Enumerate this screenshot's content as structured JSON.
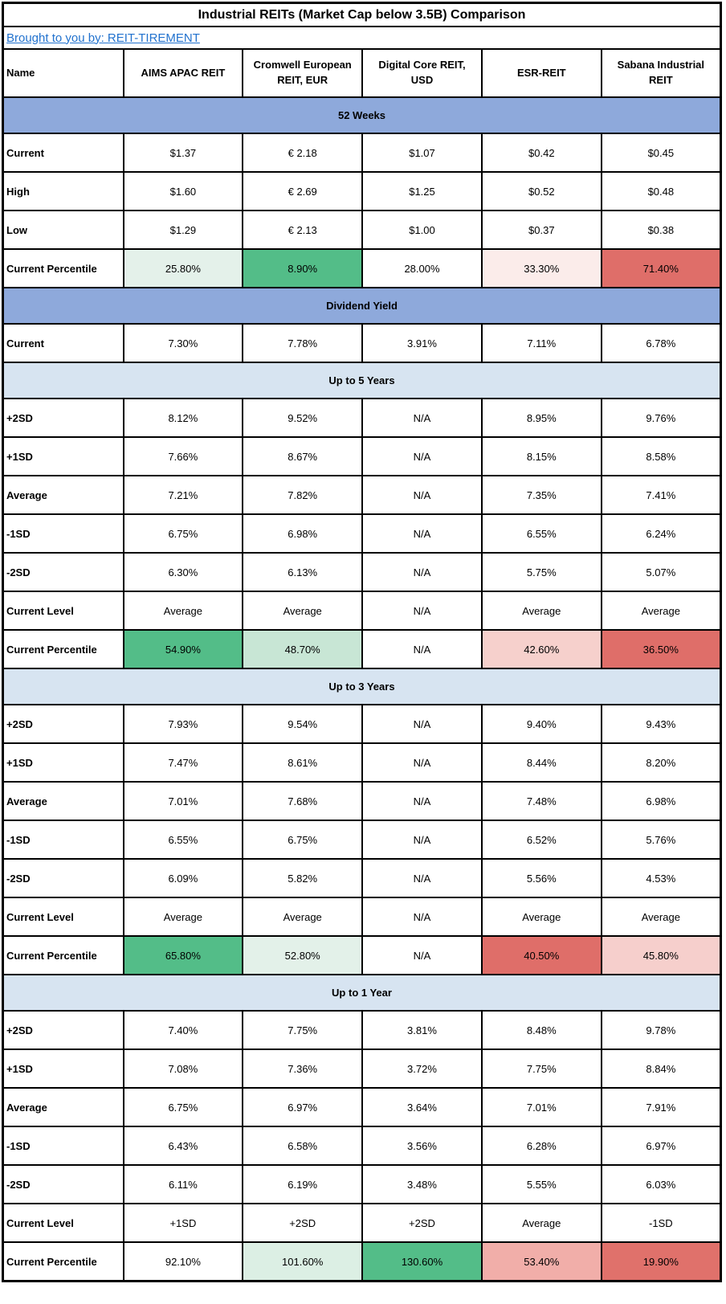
{
  "title": "Industrial REITs (Market Cap below 3.5B) Comparison",
  "byline": {
    "text": "Brought to you by: REIT-TIREMENT",
    "link_color": "#2272CE"
  },
  "colors": {
    "section_blue": "#8EA9DB",
    "section_light_blue": "#D7E4F1",
    "grid_border": "#000000",
    "green_strong": "#53BD88",
    "green_light": "#C8E6D5",
    "green_very_light": "#E4F1EA",
    "red_strong": "#DF6E69",
    "pink_medium": "#F1AEA9",
    "pink_light": "#F6CFCC",
    "pink_very_light": "#FBECEA",
    "hyperlink_blue": "#2272CE"
  },
  "chart_data": {
    "type": "table",
    "columns": [
      "Name",
      "AIMS APAC REIT",
      "Cromwell European REIT, EUR",
      "Digital Core REIT, USD",
      "ESR-REIT",
      "Sabana Industrial REIT"
    ],
    "sections": [
      {
        "header": "52 Weeks",
        "header_bg": "#8EA9DB",
        "rows": [
          {
            "label": "Current",
            "values": [
              "$1.37",
              "€ 2.18",
              "$1.07",
              "$0.42",
              "$0.45"
            ]
          },
          {
            "label": "High",
            "values": [
              "$1.60",
              "€ 2.69",
              "$1.25",
              "$0.52",
              "$0.48"
            ]
          },
          {
            "label": "Low",
            "values": [
              "$1.29",
              "€ 2.13",
              "$1.00",
              "$0.37",
              "$0.38"
            ]
          },
          {
            "label": "Current Percentile",
            "values": [
              "25.80%",
              "8.90%",
              "28.00%",
              "33.30%",
              "71.40%"
            ],
            "bg": [
              "#E4F1EA",
              "#53BD88",
              null,
              "#FBECEA",
              "#DF6E69"
            ]
          }
        ]
      },
      {
        "header": "Dividend Yield",
        "header_bg": "#8EA9DB",
        "rows": [
          {
            "label": "Current",
            "values": [
              "7.30%",
              "7.78%",
              "3.91%",
              "7.11%",
              "6.78%"
            ]
          }
        ]
      },
      {
        "header": "Up to 5 Years",
        "header_bg": "#D7E4F1",
        "rows": [
          {
            "label": "+2SD",
            "values": [
              "8.12%",
              "9.52%",
              "N/A",
              "8.95%",
              "9.76%"
            ]
          },
          {
            "label": "+1SD",
            "values": [
              "7.66%",
              "8.67%",
              "N/A",
              "8.15%",
              "8.58%"
            ]
          },
          {
            "label": "Average",
            "values": [
              "7.21%",
              "7.82%",
              "N/A",
              "7.35%",
              "7.41%"
            ]
          },
          {
            "label": "-1SD",
            "values": [
              "6.75%",
              "6.98%",
              "N/A",
              "6.55%",
              "6.24%"
            ]
          },
          {
            "label": "-2SD",
            "values": [
              "6.30%",
              "6.13%",
              "N/A",
              "5.75%",
              "5.07%"
            ]
          },
          {
            "label": "Current Level",
            "values": [
              "Average",
              "Average",
              "N/A",
              "Average",
              "Average"
            ]
          },
          {
            "label": "Current Percentile",
            "values": [
              "54.90%",
              "48.70%",
              "N/A",
              "42.60%",
              "36.50%"
            ],
            "bg": [
              "#53BD88",
              "#C8E6D5",
              null,
              "#F6D0CC",
              "#DF6E69"
            ]
          }
        ]
      },
      {
        "header": "Up to 3 Years",
        "header_bg": "#D7E4F1",
        "rows": [
          {
            "label": "+2SD",
            "values": [
              "7.93%",
              "9.54%",
              "N/A",
              "9.40%",
              "9.43%"
            ]
          },
          {
            "label": "+1SD",
            "values": [
              "7.47%",
              "8.61%",
              "N/A",
              "8.44%",
              "8.20%"
            ]
          },
          {
            "label": "Average",
            "values": [
              "7.01%",
              "7.68%",
              "N/A",
              "7.48%",
              "6.98%"
            ]
          },
          {
            "label": "-1SD",
            "values": [
              "6.55%",
              "6.75%",
              "N/A",
              "6.52%",
              "5.76%"
            ]
          },
          {
            "label": "-2SD",
            "values": [
              "6.09%",
              "5.82%",
              "N/A",
              "5.56%",
              "4.53%"
            ]
          },
          {
            "label": "Current Level",
            "values": [
              "Average",
              "Average",
              "N/A",
              "Average",
              "Average"
            ]
          },
          {
            "label": "Current Percentile",
            "values": [
              "65.80%",
              "52.80%",
              "N/A",
              "40.50%",
              "45.80%"
            ],
            "bg": [
              "#53BD88",
              "#E3F1E9",
              null,
              "#DF6E69",
              "#F6CFCC"
            ]
          }
        ]
      },
      {
        "header": "Up to 1 Year",
        "header_bg": "#D7E4F1",
        "rows": [
          {
            "label": "+2SD",
            "values": [
              "7.40%",
              "7.75%",
              "3.81%",
              "8.48%",
              "9.78%"
            ]
          },
          {
            "label": "+1SD",
            "values": [
              "7.08%",
              "7.36%",
              "3.72%",
              "7.75%",
              "8.84%"
            ]
          },
          {
            "label": "Average",
            "values": [
              "6.75%",
              "6.97%",
              "3.64%",
              "7.01%",
              "7.91%"
            ]
          },
          {
            "label": "-1SD",
            "values": [
              "6.43%",
              "6.58%",
              "3.56%",
              "6.28%",
              "6.97%"
            ]
          },
          {
            "label": "-2SD",
            "values": [
              "6.11%",
              "6.19%",
              "3.48%",
              "5.55%",
              "6.03%"
            ]
          },
          {
            "label": "Current Level",
            "values": [
              "+1SD",
              "+2SD",
              "+2SD",
              "Average",
              "-1SD"
            ]
          },
          {
            "label": "Current Percentile",
            "values": [
              "92.10%",
              "101.60%",
              "130.60%",
              "53.40%",
              "19.90%"
            ],
            "bg": [
              null,
              "#DCEFE4",
              "#53BD88",
              "#F1AEA9",
              "#E0716B"
            ]
          }
        ]
      }
    ]
  }
}
